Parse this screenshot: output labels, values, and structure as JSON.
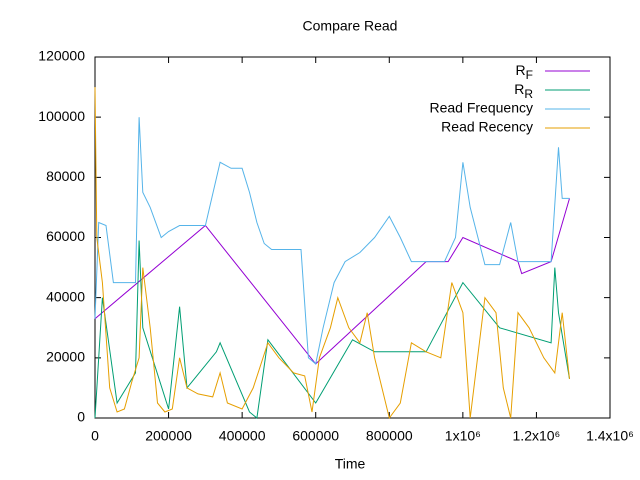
{
  "chart_data": {
    "type": "line",
    "title": "Compare Read",
    "x_label": "Time",
    "xlim": [
      0,
      1400000
    ],
    "ylim": [
      0,
      120000
    ],
    "xticks": [
      0,
      200000,
      400000,
      600000,
      800000,
      {
        "value": 1000000,
        "label": "1x10⁶"
      },
      {
        "value": 1200000,
        "label": "1.2x10⁶"
      },
      {
        "value": 1400000,
        "label": "1.4x10⁶"
      }
    ],
    "yticks": [
      0,
      20000,
      40000,
      60000,
      80000,
      100000,
      120000
    ],
    "legend": "top-right",
    "series": [
      {
        "name": "RF",
        "color": "#9400d3",
        "x": [
          0,
          300000,
          600000,
          900000,
          960000,
          1000000,
          1150000,
          1160000,
          1240000,
          1290000
        ],
        "values": [
          33000,
          64000,
          18000,
          52000,
          52000,
          60000,
          52000,
          48000,
          52000,
          73000
        ]
      },
      {
        "name": "RR",
        "color": "#009e73",
        "x": [
          0,
          20000,
          60000,
          110000,
          120000,
          130000,
          200000,
          230000,
          250000,
          330000,
          340000,
          420000,
          440000,
          470000,
          600000,
          700000,
          760000,
          900000,
          1000000,
          1100000,
          1240000,
          1250000,
          1260000,
          1290000
        ],
        "values": [
          0,
          40000,
          5000,
          15000,
          59000,
          30000,
          3000,
          37000,
          10000,
          22000,
          25000,
          2000,
          0,
          26000,
          5000,
          26000,
          22000,
          22000,
          45000,
          30000,
          25000,
          50000,
          35000,
          13000
        ]
      },
      {
        "name": "Read Frequency",
        "color": "#56b4e9",
        "x": [
          0,
          10000,
          30000,
          50000,
          80000,
          110000,
          120000,
          130000,
          150000,
          180000,
          200000,
          230000,
          260000,
          300000,
          340000,
          370000,
          400000,
          420000,
          440000,
          460000,
          480000,
          520000,
          560000,
          580000,
          600000,
          620000,
          650000,
          680000,
          720000,
          760000,
          800000,
          830000,
          860000,
          900000,
          950000,
          980000,
          1000000,
          1020000,
          1060000,
          1100000,
          1130000,
          1150000,
          1200000,
          1240000,
          1260000,
          1270000,
          1290000
        ],
        "values": [
          33000,
          65000,
          64000,
          45000,
          45000,
          45000,
          100000,
          75000,
          70000,
          60000,
          62000,
          64000,
          64000,
          64000,
          85000,
          83000,
          83000,
          75000,
          65000,
          58000,
          56000,
          56000,
          56000,
          20000,
          18000,
          30000,
          45000,
          52000,
          55000,
          60000,
          67000,
          60000,
          52000,
          52000,
          52000,
          60000,
          85000,
          70000,
          51000,
          51000,
          65000,
          52000,
          52000,
          52000,
          90000,
          73000,
          73000
        ]
      },
      {
        "name": "Read Recency",
        "color": "#e69f00",
        "x": [
          0,
          5000,
          20000,
          40000,
          60000,
          80000,
          100000,
          120000,
          130000,
          150000,
          170000,
          190000,
          210000,
          230000,
          250000,
          280000,
          320000,
          340000,
          360000,
          400000,
          430000,
          470000,
          500000,
          540000,
          570000,
          590000,
          610000,
          640000,
          660000,
          690000,
          720000,
          740000,
          760000,
          800000,
          830000,
          860000,
          900000,
          940000,
          970000,
          1000000,
          1020000,
          1060000,
          1090000,
          1110000,
          1130000,
          1150000,
          1180000,
          1220000,
          1250000,
          1270000,
          1290000
        ],
        "values": [
          110000,
          60000,
          45000,
          10000,
          2000,
          3000,
          12000,
          20000,
          50000,
          30000,
          5000,
          2000,
          3000,
          20000,
          10000,
          8000,
          7000,
          15000,
          5000,
          3000,
          10000,
          25000,
          20000,
          15000,
          14000,
          2000,
          20000,
          30000,
          40000,
          30000,
          25000,
          35000,
          20000,
          0,
          5000,
          25000,
          22000,
          20000,
          45000,
          35000,
          0,
          40000,
          35000,
          10000,
          0,
          35000,
          30000,
          20000,
          15000,
          35000,
          13000
        ]
      }
    ]
  }
}
